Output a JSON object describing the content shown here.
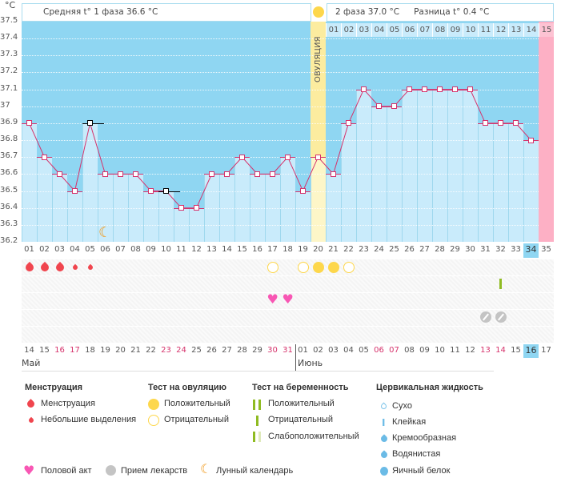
{
  "header": {
    "unit": "°C",
    "phase1": "Средняя t° 1 фаза 36.6 °C",
    "phase2": "2 фаза 37.0 °C",
    "diff": "Разница t° 0.4 °C",
    "ovulation_label": "ОВУЛЯЦИЯ"
  },
  "chart_data": {
    "type": "bar",
    "ylim": [
      36.2,
      37.5
    ],
    "yticks": [
      "37.5",
      "37.4",
      "37.3",
      "37.2",
      "37.1",
      "37",
      "36.9",
      "36.8",
      "36.7",
      "36.6",
      "36.5",
      "36.4",
      "36.3",
      "36.2"
    ],
    "cycle_days": [
      "01",
      "02",
      "03",
      "04",
      "05",
      "06",
      "07",
      "08",
      "09",
      "10",
      "11",
      "12",
      "13",
      "14",
      "15",
      "16",
      "17",
      "18",
      "19",
      "20",
      "21",
      "22",
      "23",
      "24",
      "25",
      "26",
      "27",
      "28",
      "29",
      "30",
      "31",
      "32",
      "33",
      "34",
      "35"
    ],
    "values": [
      36.9,
      36.7,
      36.6,
      36.5,
      36.9,
      36.6,
      36.6,
      36.6,
      36.5,
      36.5,
      36.4,
      36.4,
      36.6,
      36.6,
      36.7,
      36.6,
      36.6,
      36.7,
      36.5,
      36.7,
      36.6,
      36.9,
      37.1,
      37.0,
      37.0,
      37.1,
      37.1,
      37.1,
      37.1,
      37.1,
      36.9,
      36.9,
      36.9,
      36.8,
      null
    ],
    "excluded_days": [
      5,
      10
    ],
    "ovulation_day": 20,
    "expected_period_day": 35,
    "current_day": 34,
    "post_ovulation_days": [
      "01",
      "02",
      "03",
      "04",
      "05",
      "06",
      "07",
      "08",
      "09",
      "10",
      "11",
      "12",
      "13",
      "14",
      "15"
    ],
    "dates": [
      "14",
      "15",
      "16",
      "17",
      "18",
      "19",
      "20",
      "21",
      "22",
      "23",
      "24",
      "25",
      "26",
      "27",
      "28",
      "29",
      "30",
      "31",
      "01",
      "02",
      "03",
      "04",
      "05",
      "06",
      "07",
      "08",
      "09",
      "10",
      "11",
      "12",
      "13",
      "14",
      "15",
      "16",
      "17"
    ],
    "weekend_dates_index": [
      2,
      3,
      9,
      10,
      16,
      17,
      23,
      24,
      30,
      31
    ],
    "months": [
      "Май",
      "Июнь"
    ],
    "moon_day": 6,
    "markers": {
      "menstruation": [
        1,
        2,
        3
      ],
      "spotting": [
        4,
        5
      ],
      "ovulation_positive": [
        20,
        21
      ],
      "ovulation_negative": [
        17,
        19,
        22
      ],
      "pregnancy_negative": [
        32
      ],
      "intercourse": [
        17,
        18
      ],
      "medication": [
        31,
        32
      ]
    }
  },
  "colors": {
    "sky": "#8fd6f2",
    "bar": "#c9ebfb",
    "ovulation": "#fcec9f",
    "period": "#fdb0c5",
    "line": "#d6336c",
    "blood": "#f0454e",
    "sun": "#fdd74c",
    "heart": "#f857b4",
    "pill": "#c4c4c4",
    "moon": "#f19a1c",
    "test": "#8fbb22"
  },
  "legend": {
    "menstruation": {
      "title": "Менструация",
      "items": [
        "Менструация",
        "Небольшие выделения"
      ]
    },
    "ovulation_test": {
      "title": "Тест на овуляцию",
      "items": [
        "Положительный",
        "Отрицательный"
      ]
    },
    "pregnancy_test": {
      "title": "Тест на беременность",
      "items": [
        "Положительный",
        "Отрицательный",
        "Слабоположительный"
      ]
    },
    "cervical": {
      "title": "Цервикальная жидкость",
      "items": [
        "Сухо",
        "Клейкая",
        "Кремообразная",
        "Водянистая",
        "Яичный белок"
      ]
    },
    "other": [
      "Половой акт",
      "Прием лекарств",
      "Лунный календарь"
    ]
  }
}
